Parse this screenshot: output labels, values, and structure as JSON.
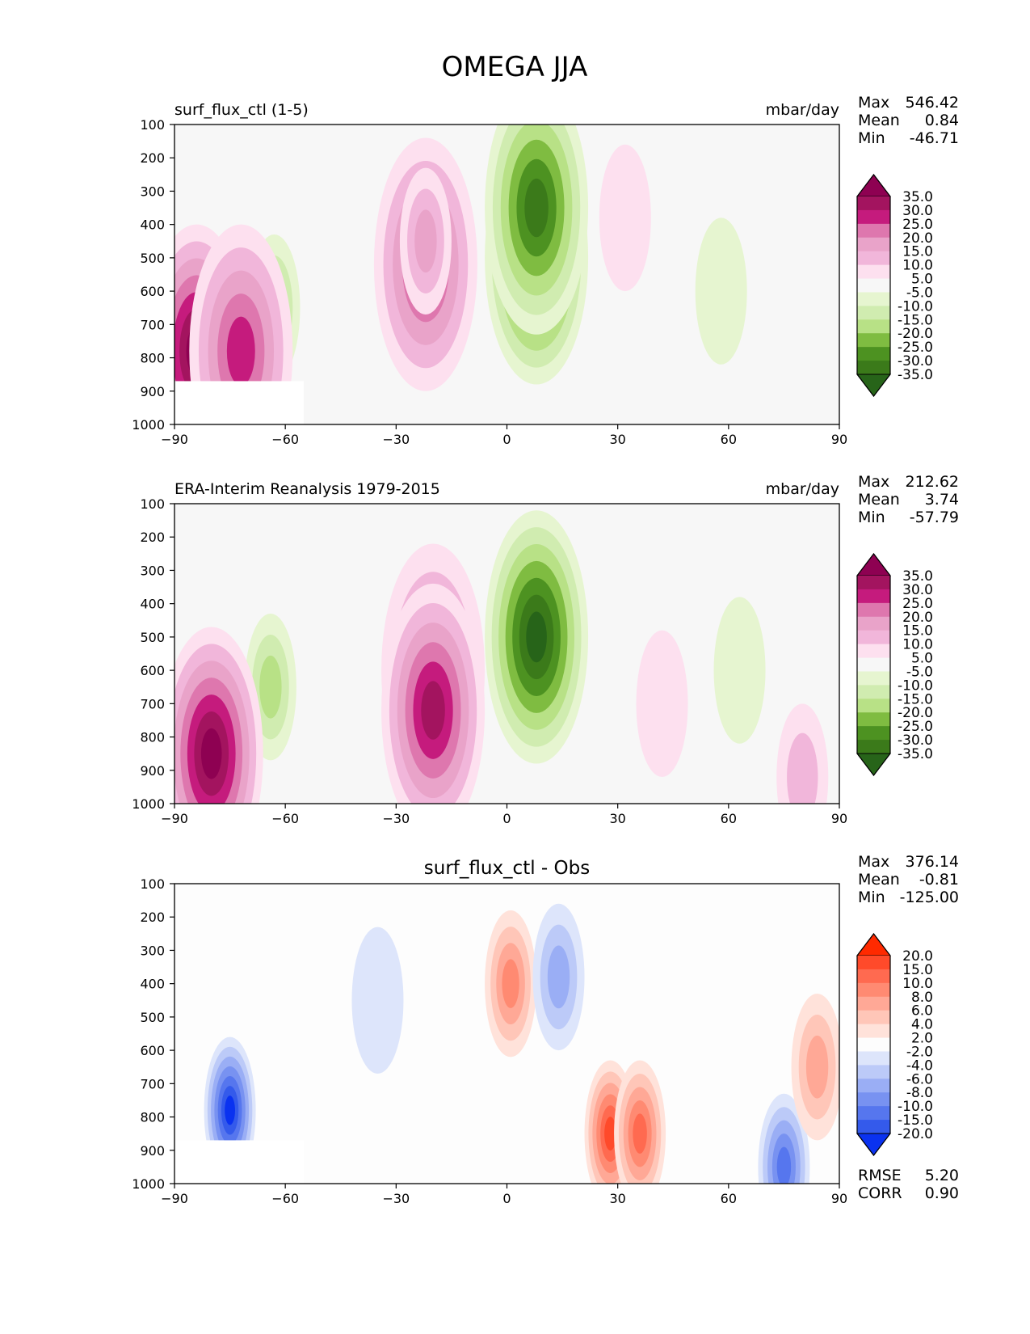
{
  "figure_title": "OMEGA JJA",
  "chart_data": [
    {
      "type": "heatmap",
      "panel": "model",
      "title": "surf_flux_ctl (1-5)",
      "units": "mbar/day",
      "xlabel": "",
      "ylabel": "",
      "xlim": [
        -90,
        90
      ],
      "ylim": [
        1000,
        100
      ],
      "xticks": [
        "−90",
        "−60",
        "−30",
        "0",
        "30",
        "60",
        "90"
      ],
      "yticks": [
        "100",
        "200",
        "300",
        "400",
        "500",
        "600",
        "700",
        "800",
        "900",
        "1000"
      ],
      "stats": {
        "max_label": "Max",
        "max_value": "546.42",
        "mean_label": "Mean",
        "mean_value": "0.84",
        "min_label": "Min",
        "min_value": "-46.71"
      },
      "colorbar_levels": [
        "35.0",
        "30.0",
        "25.0",
        "20.0",
        "15.0",
        "10.0",
        "5.0",
        "-5.0",
        "-10.0",
        "-15.0",
        "-20.0",
        "-25.0",
        "-30.0",
        "-35.0"
      ],
      "colorbar_colors": [
        "#8e0152",
        "#a3145f",
        "#c51b7d",
        "#de77ae",
        "#e9a3c9",
        "#f1b6da",
        "#fde0ef",
        "#f7f7f7",
        "#e6f5d0",
        "#d0ecb0",
        "#b8e186",
        "#7fbc41",
        "#4d9221",
        "#3b7a1a",
        "#276419"
      ],
      "features": [
        {
          "lon": -22,
          "p": 520,
          "value": 25
        },
        {
          "lon": -22,
          "p": 450,
          "value": 18
        },
        {
          "lon": 8,
          "p": 500,
          "value": -38
        },
        {
          "lon": 8,
          "p": 350,
          "value": -30
        },
        {
          "lon": -63,
          "p": 650,
          "value": -15
        },
        {
          "lon": -84,
          "p": 780,
          "value": 38
        },
        {
          "lon": -72,
          "p": 780,
          "value": 25
        },
        {
          "lon": 32,
          "p": 380,
          "value": 6
        },
        {
          "lon": 58,
          "p": 600,
          "value": -6
        }
      ],
      "masked_region": {
        "lon": [
          -90,
          -55
        ],
        "p": [
          870,
          1000
        ]
      }
    },
    {
      "type": "heatmap",
      "panel": "obs",
      "title": "ERA-Interim Reanalysis 1979-2015",
      "units": "mbar/day",
      "xlabel": "",
      "ylabel": "",
      "xlim": [
        -90,
        90
      ],
      "ylim": [
        1000,
        100
      ],
      "xticks": [
        "−90",
        "−60",
        "−30",
        "0",
        "30",
        "60",
        "90"
      ],
      "yticks": [
        "100",
        "200",
        "300",
        "400",
        "500",
        "600",
        "700",
        "800",
        "900",
        "1000"
      ],
      "stats": {
        "max_label": "Max",
        "max_value": "212.62",
        "mean_label": "Mean",
        "mean_value": "3.74",
        "min_label": "Min",
        "min_value": "-57.79"
      },
      "colorbar_levels": [
        "35.0",
        "30.0",
        "25.0",
        "20.0",
        "15.0",
        "10.0",
        "5.0",
        "-5.0",
        "-10.0",
        "-15.0",
        "-20.0",
        "-25.0",
        "-30.0",
        "-35.0"
      ],
      "colorbar_colors": [
        "#8e0152",
        "#a3145f",
        "#c51b7d",
        "#de77ae",
        "#e9a3c9",
        "#f1b6da",
        "#fde0ef",
        "#f7f7f7",
        "#e6f5d0",
        "#d0ecb0",
        "#b8e186",
        "#7fbc41",
        "#4d9221",
        "#3b7a1a",
        "#276419"
      ],
      "features": [
        {
          "lon": -20,
          "p": 600,
          "value": 22
        },
        {
          "lon": -20,
          "p": 720,
          "value": 32
        },
        {
          "lon": 8,
          "p": 500,
          "value": -38
        },
        {
          "lon": -64,
          "p": 650,
          "value": -15
        },
        {
          "lon": -80,
          "p": 850,
          "value": 40
        },
        {
          "lon": 80,
          "p": 920,
          "value": 10
        },
        {
          "lon": 42,
          "p": 700,
          "value": 5
        },
        {
          "lon": 63,
          "p": 600,
          "value": -6
        }
      ]
    },
    {
      "type": "heatmap",
      "panel": "diff",
      "title": "surf_flux_ctl - Obs",
      "units": "",
      "xlabel": "",
      "ylabel": "",
      "xlim": [
        -90,
        90
      ],
      "ylim": [
        1000,
        100
      ],
      "xticks": [
        "−90",
        "−60",
        "−30",
        "0",
        "30",
        "60",
        "90"
      ],
      "yticks": [
        "100",
        "200",
        "300",
        "400",
        "500",
        "600",
        "700",
        "800",
        "900",
        "1000"
      ],
      "stats": {
        "max_label": "Max",
        "max_value": "376.14",
        "mean_label": "Mean",
        "mean_value": "-0.81",
        "min_label": "Min",
        "min_value": "-125.00",
        "rmse_label": "RMSE",
        "rmse_value": "5.20",
        "corr_label": "CORR",
        "corr_value": "0.90"
      },
      "colorbar_levels": [
        "20.0",
        "15.0",
        "10.0",
        "8.0",
        "6.0",
        "4.0",
        "2.0",
        "-2.0",
        "-4.0",
        "-6.0",
        "-8.0",
        "-10.0",
        "-15.0",
        "-20.0"
      ],
      "colorbar_colors": [
        "#ff2a00",
        "#ff4a2a",
        "#ff6a50",
        "#ff8a72",
        "#ffa896",
        "#ffc6b8",
        "#ffe2da",
        "#fdfdfd",
        "#dde5fb",
        "#bccaf8",
        "#9aaef5",
        "#7892f1",
        "#5676ee",
        "#345aeb",
        "#0a32f0"
      ],
      "features": [
        {
          "lon": 1,
          "p": 400,
          "value": 8
        },
        {
          "lon": 14,
          "p": 380,
          "value": -6
        },
        {
          "lon": 28,
          "p": 850,
          "value": 15
        },
        {
          "lon": 36,
          "p": 850,
          "value": 10
        },
        {
          "lon": 75,
          "p": 950,
          "value": -12
        },
        {
          "lon": -75,
          "p": 780,
          "value": -20
        },
        {
          "lon": 84,
          "p": 650,
          "value": 6
        },
        {
          "lon": -35,
          "p": 450,
          "value": -3
        }
      ],
      "masked_region": {
        "lon": [
          -90,
          -55
        ],
        "p": [
          870,
          1000
        ]
      }
    }
  ]
}
